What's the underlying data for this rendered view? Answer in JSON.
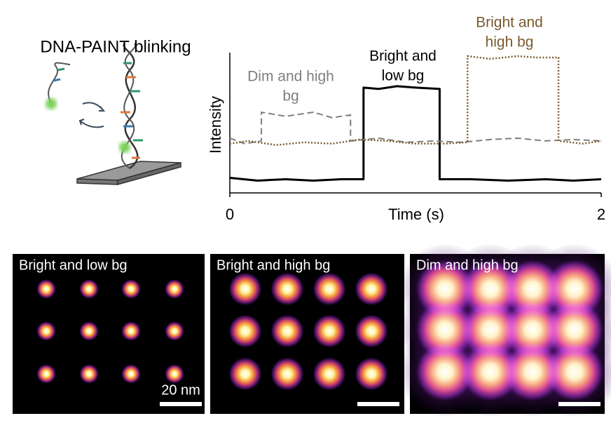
{
  "chart_data": {
    "type": "line",
    "illustration_title": "DNA-PAINT blinking",
    "x_label": "Time (s)",
    "y_label": "Intensity",
    "xlim": [
      0,
      2
    ],
    "xticks": [
      0,
      2
    ],
    "ylim": [
      0,
      1
    ],
    "series": [
      {
        "name": "Bright and low bg",
        "color": "#000000",
        "dash": "solid",
        "x": [
          0,
          0.15,
          0.3,
          0.45,
          0.6,
          0.72,
          0.72,
          0.8,
          0.9,
          1.0,
          1.13,
          1.13,
          1.3,
          1.5,
          1.7,
          1.85,
          2.0
        ],
        "values": [
          0.11,
          0.09,
          0.1,
          0.09,
          0.1,
          0.1,
          0.77,
          0.76,
          0.78,
          0.77,
          0.76,
          0.1,
          0.1,
          0.09,
          0.1,
          0.09,
          0.1
        ]
      },
      {
        "name": "Dim and high bg",
        "color": "#7f7f7f",
        "dash": "dashed",
        "x": [
          0,
          0.08,
          0.17,
          0.17,
          0.3,
          0.45,
          0.55,
          0.65,
          0.65,
          0.8,
          0.95,
          1.1,
          1.25,
          1.4,
          1.55,
          1.7,
          1.85,
          2.0
        ],
        "values": [
          0.4,
          0.36,
          0.38,
          0.59,
          0.56,
          0.59,
          0.55,
          0.57,
          0.38,
          0.4,
          0.37,
          0.38,
          0.37,
          0.39,
          0.4,
          0.38,
          0.39,
          0.38
        ]
      },
      {
        "name": "Bright and high bg",
        "color": "#7a5a2e",
        "dash": "dotted",
        "x": [
          0,
          0.1,
          0.25,
          0.4,
          0.55,
          0.7,
          0.85,
          1.0,
          1.15,
          1.28,
          1.28,
          1.4,
          1.55,
          1.65,
          1.77,
          1.77,
          1.9,
          2.0
        ],
        "values": [
          0.36,
          0.38,
          0.35,
          0.37,
          0.36,
          0.39,
          0.38,
          0.36,
          0.36,
          0.37,
          1.0,
          0.98,
          1.0,
          0.99,
          0.99,
          0.38,
          0.36,
          0.38
        ]
      }
    ],
    "annotations": [
      {
        "lines": [
          "Dim and high",
          "bg"
        ],
        "color": "#7f7f7f"
      },
      {
        "lines": [
          "Bright and",
          "low bg"
        ],
        "color": "#000000"
      },
      {
        "lines": [
          "Bright and",
          "high bg"
        ],
        "color": "#7a5a2e"
      }
    ],
    "panels": [
      {
        "title": "Bright and low bg",
        "scale_bar_label": "20 nm"
      },
      {
        "title": "Bright and high bg"
      },
      {
        "title": "Dim and high bg"
      }
    ]
  }
}
